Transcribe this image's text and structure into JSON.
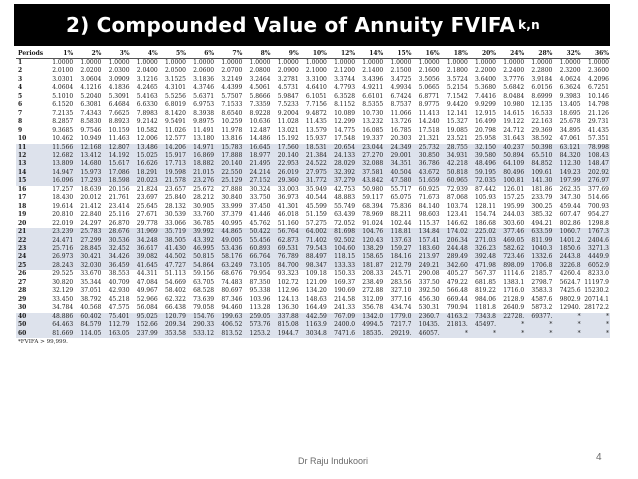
{
  "slide": {
    "title": "2) Compounded Value of Annuity  FVIFA",
    "title_subscript": "k,n",
    "author": "Dr Raju Indukoori",
    "page_number": "4"
  },
  "table": {
    "header": [
      "Periods",
      "1%",
      "2%",
      "3%",
      "4%",
      "5%",
      "6%",
      "7%",
      "8%",
      "9%",
      "10%",
      "12%",
      "14%",
      "15%",
      "16%",
      "18%",
      "20%",
      "24%",
      "28%",
      "32%",
      "36%"
    ],
    "rows": [
      [
        "1",
        "1.0000",
        "1.0000",
        "1.0000",
        "1.0000",
        "1.0000",
        "1.0000",
        "1.0000",
        "1.0000",
        "1.0000",
        "1.0000",
        "1.0000",
        "1.0000",
        "1.0000",
        "1.0000",
        "1.0000",
        "1.0000",
        "1.0000",
        "1.0000",
        "1.0000",
        "1.0000"
      ],
      [
        "2",
        "2.0100",
        "2.0200",
        "2.0300",
        "2.0400",
        "2.0500",
        "2.0600",
        "2.0700",
        "2.0800",
        "2.0900",
        "2.1000",
        "2.1200",
        "2.1400",
        "2.1500",
        "2.1600",
        "2.1800",
        "2.2000",
        "2.2400",
        "2.2800",
        "2.3200",
        "2.3600"
      ],
      [
        "3",
        "3.0301",
        "3.0604",
        "3.0909",
        "3.1216",
        "3.1525",
        "3.1836",
        "3.2149",
        "3.2464",
        "3.2781",
        "3.3100",
        "3.3744",
        "3.4396",
        "3.4725",
        "3.5056",
        "3.5724",
        "3.6400",
        "3.7776",
        "3.9184",
        "4.0624",
        "4.2096"
      ],
      [
        "4",
        "4.0604",
        "4.1216",
        "4.1836",
        "4.2465",
        "4.3101",
        "4.3746",
        "4.4399",
        "4.5061",
        "4.5731",
        "4.6410",
        "4.7793",
        "4.9211",
        "4.9934",
        "5.0665",
        "5.2154",
        "5.3680",
        "5.6842",
        "6.0156",
        "6.3624",
        "6.7251"
      ],
      [
        "5",
        "5.1010",
        "5.2040",
        "5.3091",
        "5.4163",
        "5.5256",
        "5.6371",
        "5.7507",
        "5.8666",
        "5.9847",
        "6.1051",
        "6.3528",
        "6.6101",
        "6.7424",
        "6.8771",
        "7.1542",
        "7.4416",
        "8.0484",
        "8.6999",
        "9.3983",
        "10.146"
      ],
      [
        "6",
        "6.1520",
        "6.3081",
        "6.4684",
        "6.6330",
        "6.8019",
        "6.9753",
        "7.1533",
        "7.3359",
        "7.5233",
        "7.7156",
        "8.1152",
        "8.5355",
        "8.7537",
        "8.9775",
        "9.4420",
        "9.9299",
        "10.980",
        "12.135",
        "13.405",
        "14.798"
      ],
      [
        "7",
        "7.2135",
        "7.4343",
        "7.6625",
        "7.8983",
        "8.1420",
        "8.3938",
        "8.6540",
        "8.9228",
        "9.2004",
        "9.4872",
        "10.089",
        "10.730",
        "11.066",
        "11.413",
        "12.141",
        "12.915",
        "14.615",
        "16.533",
        "18.695",
        "21.126"
      ],
      [
        "8",
        "8.2857",
        "8.5830",
        "8.8923",
        "9.2142",
        "9.5491",
        "9.8975",
        "10.259",
        "10.636",
        "11.028",
        "11.435",
        "12.299",
        "13.232",
        "13.726",
        "14.240",
        "15.327",
        "16.499",
        "19.122",
        "22.163",
        "25.678",
        "29.731"
      ],
      [
        "9",
        "9.3685",
        "9.7546",
        "10.159",
        "10.582",
        "11.026",
        "11.491",
        "11.978",
        "12.487",
        "13.021",
        "13.579",
        "14.775",
        "16.085",
        "16.785",
        "17.518",
        "19.085",
        "20.798",
        "24.712",
        "29.369",
        "34.895",
        "41.435"
      ],
      [
        "10",
        "10.462",
        "10.949",
        "11.463",
        "12.006",
        "12.577",
        "13.180",
        "13.816",
        "14.486",
        "15.192",
        "15.937",
        "17.548",
        "19.337",
        "20.303",
        "21.321",
        "23.521",
        "25.958",
        "31.643",
        "38.592",
        "47.061",
        "57.351"
      ],
      [
        "11",
        "11.566",
        "12.168",
        "12.807",
        "13.486",
        "14.206",
        "14.971",
        "15.783",
        "16.645",
        "17.560",
        "18.531",
        "20.654",
        "23.044",
        "24.349",
        "25.732",
        "28.755",
        "32.150",
        "40.237",
        "50.398",
        "63.121",
        "78.998"
      ],
      [
        "12",
        "12.682",
        "13.412",
        "14.192",
        "15.025",
        "15.917",
        "16.869",
        "17.888",
        "18.977",
        "20.140",
        "21.384",
        "24.133",
        "27.270",
        "29.001",
        "30.850",
        "34.931",
        "39.580",
        "50.894",
        "65.510",
        "84.320",
        "108.43"
      ],
      [
        "13",
        "13.809",
        "14.680",
        "15.617",
        "16.626",
        "17.713",
        "18.882",
        "20.140",
        "21.495",
        "22.953",
        "24.522",
        "28.029",
        "32.088",
        "34.351",
        "36.786",
        "42.218",
        "48.496",
        "64.109",
        "84.852",
        "112.30",
        "148.47"
      ],
      [
        "14",
        "14.947",
        "15.973",
        "17.086",
        "18.291",
        "19.598",
        "21.015",
        "22.550",
        "24.214",
        "26.019",
        "27.975",
        "32.392",
        "37.581",
        "40.504",
        "43.672",
        "50.818",
        "59.195",
        "80.496",
        "109.61",
        "149.23",
        "202.92"
      ],
      [
        "15",
        "16.096",
        "17.293",
        "18.598",
        "20.023",
        "21.578",
        "23.276",
        "25.129",
        "27.152",
        "29.360",
        "31.772",
        "37.279",
        "43.842",
        "47.580",
        "51.659",
        "60.965",
        "72.035",
        "100.81",
        "141.30",
        "197.99",
        "276.97"
      ],
      [
        "16",
        "17.257",
        "18.639",
        "20.156",
        "21.824",
        "23.657",
        "25.672",
        "27.888",
        "30.324",
        "33.003",
        "35.949",
        "42.753",
        "50.980",
        "55.717",
        "60.925",
        "72.939",
        "87.442",
        "126.01",
        "181.86",
        "262.35",
        "377.69"
      ],
      [
        "17",
        "18.430",
        "20.012",
        "21.761",
        "23.697",
        "25.840",
        "28.212",
        "30.840",
        "33.750",
        "36.973",
        "40.544",
        "48.883",
        "59.117",
        "65.075",
        "71.673",
        "87.068",
        "105.93",
        "157.25",
        "233.79",
        "347.30",
        "514.66"
      ],
      [
        "18",
        "19.614",
        "21.412",
        "23.414",
        "25.645",
        "28.132",
        "30.905",
        "33.999",
        "37.450",
        "41.301",
        "45.599",
        "55.749",
        "68.394",
        "75.836",
        "84.140",
        "103.74",
        "128.11",
        "195.99",
        "300.25",
        "459.44",
        "700.93"
      ],
      [
        "19",
        "20.810",
        "22.840",
        "25.116",
        "27.671",
        "30.539",
        "33.760",
        "37.379",
        "41.446",
        "46.018",
        "51.159",
        "63.439",
        "78.969",
        "88.211",
        "98.603",
        "123.41",
        "154.74",
        "244.03",
        "385.32",
        "607.47",
        "954.27"
      ],
      [
        "20",
        "22.019",
        "24.297",
        "26.870",
        "29.778",
        "33.066",
        "36.785",
        "40.995",
        "45.762",
        "51.160",
        "57.275",
        "72.052",
        "91.024",
        "102.44",
        "115.37",
        "146.62",
        "186.68",
        "303.60",
        "494.21",
        "802.86",
        "1298.8"
      ],
      [
        "21",
        "23.239",
        "25.783",
        "28.676",
        "31.969",
        "35.719",
        "39.992",
        "44.865",
        "50.422",
        "56.764",
        "64.002",
        "81.698",
        "104.76",
        "118.81",
        "134.84",
        "174.02",
        "225.02",
        "377.46",
        "633.59",
        "1060.7",
        "1767.3"
      ],
      [
        "22",
        "24.471",
        "27.299",
        "30.536",
        "34.248",
        "38.505",
        "43.392",
        "49.005",
        "55.456",
        "62.873",
        "71.402",
        "92.502",
        "120.43",
        "137.63",
        "157.41",
        "206.34",
        "271.03",
        "469.05",
        "811.99",
        "1401.2",
        "2404.6"
      ],
      [
        "23",
        "25.716",
        "28.845",
        "32.452",
        "36.617",
        "41.430",
        "46.995",
        "53.436",
        "60.893",
        "69.531",
        "79.543",
        "104.60",
        "138.29",
        "159.27",
        "183.60",
        "244.48",
        "326.23",
        "582.62",
        "1040.3",
        "1850.6",
        "3271.3"
      ],
      [
        "24",
        "26.973",
        "30.421",
        "34.426",
        "39.082",
        "44.502",
        "50.815",
        "58.176",
        "66.764",
        "76.789",
        "88.497",
        "118.15",
        "158.65",
        "184.16",
        "213.97",
        "289.49",
        "392.48",
        "723.46",
        "1332.6",
        "2443.8",
        "4449.9"
      ],
      [
        "25",
        "28.243",
        "32.030",
        "36.459",
        "41.645",
        "47.727",
        "54.864",
        "63.249",
        "73.105",
        "84.700",
        "98.347",
        "133.33",
        "181.87",
        "212.79",
        "249.21",
        "342.60",
        "471.98",
        "898.09",
        "1706.8",
        "3226.8",
        "6052.9"
      ],
      [
        "26",
        "29.525",
        "33.670",
        "38.553",
        "44.311",
        "51.113",
        "59.156",
        "68.676",
        "79.954",
        "93.323",
        "109.18",
        "150.33",
        "208.33",
        "245.71",
        "290.08",
        "405.27",
        "567.37",
        "1114.6",
        "2185.7",
        "4260.4",
        "8233.0"
      ],
      [
        "27",
        "30.820",
        "35.344",
        "40.709",
        "47.084",
        "54.669",
        "63.705",
        "74.483",
        "87.350",
        "102.72",
        "121.09",
        "169.37",
        "238.49",
        "283.56",
        "337.50",
        "479.22",
        "681.85",
        "1383.1",
        "2798.7",
        "5624.7",
        "11197.9"
      ],
      [
        "28",
        "32.129",
        "37.051",
        "42.930",
        "49.967",
        "58.402",
        "68.528",
        "80.697",
        "95.338",
        "112.96",
        "134.20",
        "190.69",
        "272.88",
        "327.10",
        "392.50",
        "566.48",
        "819.22",
        "1716.0",
        "3583.3",
        "7425.6",
        "15230.2"
      ],
      [
        "29",
        "33.450",
        "38.792",
        "45.218",
        "52.966",
        "62.322",
        "73.639",
        "87.346",
        "103.96",
        "124.13",
        "148.63",
        "214.58",
        "312.09",
        "377.16",
        "456.30",
        "669.44",
        "984.06",
        "2128.9",
        "4587.6",
        "9802.9",
        "20714.1"
      ],
      [
        "30",
        "34.784",
        "40.568",
        "47.575",
        "56.084",
        "66.438",
        "79.058",
        "94.460",
        "113.28",
        "136.30",
        "164.49",
        "241.33",
        "356.78",
        "434.74",
        "530.31",
        "790.94",
        "1181.8",
        "2640.9",
        "5873.2",
        "12940.",
        "28172.2"
      ],
      [
        "40",
        "48.886",
        "60.402",
        "75.401",
        "95.025",
        "120.79",
        "154.76",
        "199.63",
        "259.05",
        "337.88",
        "442.59",
        "767.09",
        "1342.0",
        "1779.0",
        "2360.7",
        "4163.2",
        "7343.8",
        "22728.",
        "69377.",
        "*",
        "*"
      ],
      [
        "50",
        "64.463",
        "84.579",
        "112.79",
        "152.66",
        "209.34",
        "290.33",
        "406.52",
        "573.76",
        "815.08",
        "1163.9",
        "2400.0",
        "4994.5",
        "7217.7",
        "10435.",
        "21813.",
        "45497.",
        "*",
        "*",
        "*",
        "*"
      ],
      [
        "60",
        "81.669",
        "114.05",
        "163.05",
        "237.99",
        "353.58",
        "533.12",
        "813.52",
        "1253.2",
        "1944.7",
        "3034.8",
        "7471.6",
        "18535.",
        "29219.",
        "46057.",
        "*",
        "*",
        "*",
        "*",
        "*",
        "*"
      ]
    ],
    "footnote": "*FVIFA > 99,999."
  }
}
